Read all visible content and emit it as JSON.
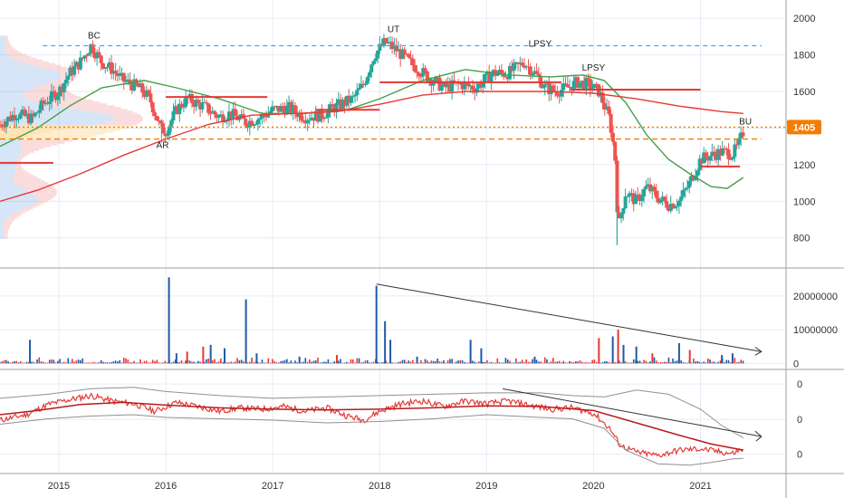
{
  "chart_data": [
    {
      "type": "candlestick",
      "panel": "price",
      "x_ticks": [
        "2015",
        "2016",
        "2017",
        "2018",
        "2019",
        "2020",
        "2021"
      ],
      "y_ticks": [
        "800",
        "1000",
        "1200",
        "1400",
        "1600",
        "1800",
        "2000"
      ],
      "ylim": [
        640,
        2100
      ],
      "xlim": [
        2014.45,
        2021.8
      ],
      "last_price": "1405",
      "last_price_color": "#f57c00",
      "series": [
        {
          "name": "",
          "color": "#26a69a",
          "style": "candles-up"
        },
        {
          "name": "",
          "color": "#ef5350",
          "style": "candles-down"
        }
      ],
      "close_path": [
        [
          2014.45,
          1420
        ],
        [
          2014.6,
          1480
        ],
        [
          2014.75,
          1450
        ],
        [
          2014.85,
          1530
        ],
        [
          2015.0,
          1600
        ],
        [
          2015.1,
          1700
        ],
        [
          2015.2,
          1760
        ],
        [
          2015.3,
          1850
        ],
        [
          2015.4,
          1760
        ],
        [
          2015.5,
          1720
        ],
        [
          2015.6,
          1660
        ],
        [
          2015.75,
          1620
        ],
        [
          2015.85,
          1560
        ],
        [
          2015.95,
          1400
        ],
        [
          2016.0,
          1380
        ],
        [
          2016.1,
          1500
        ],
        [
          2016.2,
          1560
        ],
        [
          2016.35,
          1520
        ],
        [
          2016.5,
          1460
        ],
        [
          2016.6,
          1480
        ],
        [
          2016.75,
          1430
        ],
        [
          2016.9,
          1460
        ],
        [
          2017.0,
          1500
        ],
        [
          2017.15,
          1510
        ],
        [
          2017.3,
          1460
        ],
        [
          2017.45,
          1470
        ],
        [
          2017.6,
          1520
        ],
        [
          2017.75,
          1560
        ],
        [
          2017.85,
          1640
        ],
        [
          2017.95,
          1800
        ],
        [
          2018.05,
          1870
        ],
        [
          2018.15,
          1830
        ],
        [
          2018.3,
          1750
        ],
        [
          2018.45,
          1680
        ],
        [
          2018.6,
          1620
        ],
        [
          2018.75,
          1640
        ],
        [
          2018.9,
          1620
        ],
        [
          2019.05,
          1700
        ],
        [
          2019.2,
          1700
        ],
        [
          2019.35,
          1760
        ],
        [
          2019.45,
          1700
        ],
        [
          2019.55,
          1620
        ],
        [
          2019.65,
          1600
        ],
        [
          2019.75,
          1620
        ],
        [
          2019.85,
          1650
        ],
        [
          2019.95,
          1640
        ],
        [
          2020.05,
          1600
        ],
        [
          2020.15,
          1450
        ],
        [
          2020.2,
          1250
        ],
        [
          2020.23,
          850
        ],
        [
          2020.3,
          1050
        ],
        [
          2020.4,
          1000
        ],
        [
          2020.5,
          1080
        ],
        [
          2020.6,
          1020
        ],
        [
          2020.7,
          980
        ],
        [
          2020.8,
          1000
        ],
        [
          2020.9,
          1100
        ],
        [
          2021.0,
          1230
        ],
        [
          2021.1,
          1250
        ],
        [
          2021.2,
          1270
        ],
        [
          2021.3,
          1260
        ],
        [
          2021.35,
          1300
        ],
        [
          2021.4,
          1380
        ]
      ],
      "lines": [
        {
          "name": "",
          "color": "#43a047",
          "points": [
            [
              2014.45,
              1300
            ],
            [
              2014.8,
              1400
            ],
            [
              2015.1,
              1520
            ],
            [
              2015.4,
              1620
            ],
            [
              2015.8,
              1660
            ],
            [
              2016.1,
              1620
            ],
            [
              2016.5,
              1560
            ],
            [
              2016.9,
              1480
            ],
            [
              2017.3,
              1480
            ],
            [
              2017.7,
              1500
            ],
            [
              2018.0,
              1560
            ],
            [
              2018.4,
              1660
            ],
            [
              2018.8,
              1720
            ],
            [
              2019.2,
              1690
            ],
            [
              2019.6,
              1680
            ],
            [
              2019.9,
              1690
            ],
            [
              2020.1,
              1660
            ],
            [
              2020.3,
              1540
            ],
            [
              2020.5,
              1360
            ],
            [
              2020.7,
              1230
            ],
            [
              2020.9,
              1150
            ],
            [
              2021.1,
              1080
            ],
            [
              2021.25,
              1070
            ],
            [
              2021.4,
              1130
            ]
          ]
        },
        {
          "name": "",
          "color": "#e53935",
          "points": [
            [
              2014.45,
              1000
            ],
            [
              2014.8,
              1060
            ],
            [
              2015.2,
              1150
            ],
            [
              2015.6,
              1250
            ],
            [
              2016.0,
              1340
            ],
            [
              2016.4,
              1420
            ],
            [
              2016.8,
              1470
            ],
            [
              2017.2,
              1480
            ],
            [
              2017.6,
              1490
            ],
            [
              2018.0,
              1530
            ],
            [
              2018.4,
              1580
            ],
            [
              2018.8,
              1600
            ],
            [
              2019.2,
              1600
            ],
            [
              2019.6,
              1600
            ],
            [
              2020.0,
              1590
            ],
            [
              2020.4,
              1560
            ],
            [
              2020.8,
              1520
            ],
            [
              2021.2,
              1490
            ],
            [
              2021.4,
              1480
            ]
          ]
        }
      ],
      "levels": [
        {
          "value": 1850,
          "from": 2014.85,
          "to": 2021.57,
          "color": "#42a5f5",
          "style": "dashed"
        },
        {
          "value": 1340,
          "from": 2014.45,
          "to": 2021.57,
          "color": "#f57c00",
          "style": "dashed"
        },
        {
          "value": 1405,
          "from": 2014.45,
          "to": 2021.8,
          "color": "#f57c00",
          "style": "dotted"
        },
        {
          "value": 1570,
          "from": 2016.0,
          "to": 2016.95,
          "color": "#e53935",
          "style": "solid"
        },
        {
          "value": 1500,
          "from": 2017.4,
          "to": 2018.0,
          "color": "#e53935",
          "style": "solid"
        },
        {
          "value": 1650,
          "from": 2018.0,
          "to": 2019.7,
          "color": "#e53935",
          "style": "solid"
        },
        {
          "value": 1610,
          "from": 2019.8,
          "to": 2021.0,
          "color": "#e53935",
          "style": "solid"
        },
        {
          "value": 1190,
          "from": 2021.0,
          "to": 2021.37,
          "color": "#e53935",
          "style": "solid"
        },
        {
          "value": 1210,
          "from": 2014.45,
          "to": 2014.95,
          "color": "#e53935",
          "style": "solid"
        }
      ],
      "annotations": [
        {
          "text": "BC",
          "x": 2015.33,
          "y": 1890
        },
        {
          "text": "AR",
          "x": 2015.97,
          "y": 1290
        },
        {
          "text": "UT",
          "x": 2018.13,
          "y": 1925
        },
        {
          "text": "LPSY",
          "x": 2019.5,
          "y": 1845
        },
        {
          "text": "LPSY",
          "x": 2020.0,
          "y": 1715
        },
        {
          "text": "BU",
          "x": 2021.42,
          "y": 1420
        }
      ],
      "volume_profile": true
    },
    {
      "type": "bar",
      "panel": "volume",
      "y_ticks": [
        "0",
        "10000000",
        "20000000"
      ],
      "ylim": [
        -1500000,
        28000000
      ],
      "up_color": "#1e5aa8",
      "down_color": "#e53935",
      "spikes": [
        [
          2014.73,
          7000000,
          "up"
        ],
        [
          2016.03,
          25500000,
          "up"
        ],
        [
          2016.1,
          3000000,
          "up"
        ],
        [
          2016.2,
          3500000,
          "down"
        ],
        [
          2016.35,
          5000000,
          "down"
        ],
        [
          2016.42,
          5500000,
          "up"
        ],
        [
          2016.55,
          4500000,
          "up"
        ],
        [
          2016.75,
          19000000,
          "up"
        ],
        [
          2016.85,
          3000000,
          "up"
        ],
        [
          2017.25,
          2000000,
          "up"
        ],
        [
          2017.6,
          2500000,
          "down"
        ],
        [
          2017.97,
          23000000,
          "up"
        ],
        [
          2018.05,
          12500000,
          "up"
        ],
        [
          2018.1,
          7000000,
          "up"
        ],
        [
          2018.35,
          2000000,
          "up"
        ],
        [
          2018.85,
          7000000,
          "up"
        ],
        [
          2018.95,
          4500000,
          "up"
        ],
        [
          2019.45,
          2000000,
          "up"
        ],
        [
          2020.05,
          7500000,
          "down"
        ],
        [
          2020.18,
          8000000,
          "up"
        ],
        [
          2020.23,
          10000000,
          "down"
        ],
        [
          2020.28,
          5500000,
          "up"
        ],
        [
          2020.4,
          5000000,
          "up"
        ],
        [
          2020.55,
          3000000,
          "down"
        ],
        [
          2020.8,
          6000000,
          "up"
        ],
        [
          2020.9,
          4000000,
          "down"
        ],
        [
          2021.2,
          2500000,
          "up"
        ],
        [
          2021.3,
          3000000,
          "up"
        ]
      ],
      "trend_line": [
        [
          2017.97,
          23500000
        ],
        [
          2021.57,
          3500000
        ]
      ]
    },
    {
      "type": "line",
      "panel": "indicator",
      "y_ticks": [
        "0",
        "0",
        "0"
      ],
      "ylim": [
        -0.35,
        1.15
      ],
      "series": [
        {
          "name": "",
          "color": "#e53935",
          "points": [
            [
              2014.45,
              0.42
            ],
            [
              2014.7,
              0.5
            ],
            [
              2014.9,
              0.65
            ],
            [
              2015.1,
              0.72
            ],
            [
              2015.3,
              0.78
            ],
            [
              2015.5,
              0.7
            ],
            [
              2015.7,
              0.66
            ],
            [
              2015.9,
              0.55
            ],
            [
              2016.1,
              0.68
            ],
            [
              2016.3,
              0.62
            ],
            [
              2016.5,
              0.55
            ],
            [
              2016.7,
              0.6
            ],
            [
              2016.9,
              0.58
            ],
            [
              2017.1,
              0.62
            ],
            [
              2017.3,
              0.55
            ],
            [
              2017.5,
              0.6
            ],
            [
              2017.7,
              0.48
            ],
            [
              2017.85,
              0.42
            ],
            [
              2018.0,
              0.55
            ],
            [
              2018.2,
              0.66
            ],
            [
              2018.4,
              0.7
            ],
            [
              2018.6,
              0.62
            ],
            [
              2018.8,
              0.7
            ],
            [
              2019.0,
              0.66
            ],
            [
              2019.2,
              0.7
            ],
            [
              2019.4,
              0.64
            ],
            [
              2019.6,
              0.58
            ],
            [
              2019.8,
              0.6
            ],
            [
              2020.0,
              0.52
            ],
            [
              2020.15,
              0.3
            ],
            [
              2020.25,
              0.05
            ],
            [
              2020.4,
              -0.05
            ],
            [
              2020.6,
              -0.1
            ],
            [
              2020.8,
              -0.02
            ],
            [
              2021.0,
              0.0
            ],
            [
              2021.2,
              -0.05
            ],
            [
              2021.3,
              -0.07
            ],
            [
              2021.4,
              0.0
            ]
          ]
        },
        {
          "name": "",
          "color": "#b71c1c",
          "points": [
            [
              2014.45,
              0.5
            ],
            [
              2014.8,
              0.56
            ],
            [
              2015.2,
              0.65
            ],
            [
              2015.6,
              0.68
            ],
            [
              2016.0,
              0.64
            ],
            [
              2016.5,
              0.6
            ],
            [
              2017.0,
              0.58
            ],
            [
              2017.5,
              0.57
            ],
            [
              2018.0,
              0.58
            ],
            [
              2018.5,
              0.6
            ],
            [
              2019.0,
              0.63
            ],
            [
              2019.5,
              0.62
            ],
            [
              2020.0,
              0.56
            ],
            [
              2020.4,
              0.38
            ],
            [
              2020.8,
              0.2
            ],
            [
              2021.1,
              0.07
            ],
            [
              2021.4,
              -0.02
            ]
          ]
        },
        {
          "name": "",
          "color": "#909090",
          "points": [
            [
              2014.45,
              0.74
            ],
            [
              2014.9,
              0.8
            ],
            [
              2015.3,
              0.88
            ],
            [
              2015.7,
              0.9
            ],
            [
              2016.0,
              0.84
            ],
            [
              2016.5,
              0.78
            ],
            [
              2017.0,
              0.74
            ],
            [
              2017.5,
              0.76
            ],
            [
              2018.0,
              0.78
            ],
            [
              2018.5,
              0.8
            ],
            [
              2019.0,
              0.82
            ],
            [
              2019.5,
              0.82
            ],
            [
              2019.8,
              0.78
            ],
            [
              2020.1,
              0.76
            ],
            [
              2020.4,
              0.86
            ],
            [
              2020.7,
              0.8
            ],
            [
              2021.0,
              0.58
            ],
            [
              2021.2,
              0.34
            ],
            [
              2021.4,
              0.16
            ]
          ]
        },
        {
          "name": "",
          "color": "#909090",
          "points": [
            [
              2014.45,
              0.36
            ],
            [
              2014.9,
              0.44
            ],
            [
              2015.3,
              0.48
            ],
            [
              2015.7,
              0.5
            ],
            [
              2016.0,
              0.46
            ],
            [
              2016.5,
              0.44
            ],
            [
              2017.0,
              0.42
            ],
            [
              2017.5,
              0.38
            ],
            [
              2018.0,
              0.4
            ],
            [
              2018.5,
              0.44
            ],
            [
              2019.0,
              0.5
            ],
            [
              2019.5,
              0.46
            ],
            [
              2019.8,
              0.44
            ],
            [
              2020.1,
              0.3
            ],
            [
              2020.3,
              -0.02
            ],
            [
              2020.6,
              -0.22
            ],
            [
              2020.9,
              -0.24
            ],
            [
              2021.1,
              -0.2
            ],
            [
              2021.3,
              -0.15
            ],
            [
              2021.4,
              -0.14
            ]
          ]
        }
      ],
      "trend_line": [
        [
          2019.15,
          0.88
        ],
        [
          2021.57,
          0.18
        ]
      ]
    }
  ]
}
